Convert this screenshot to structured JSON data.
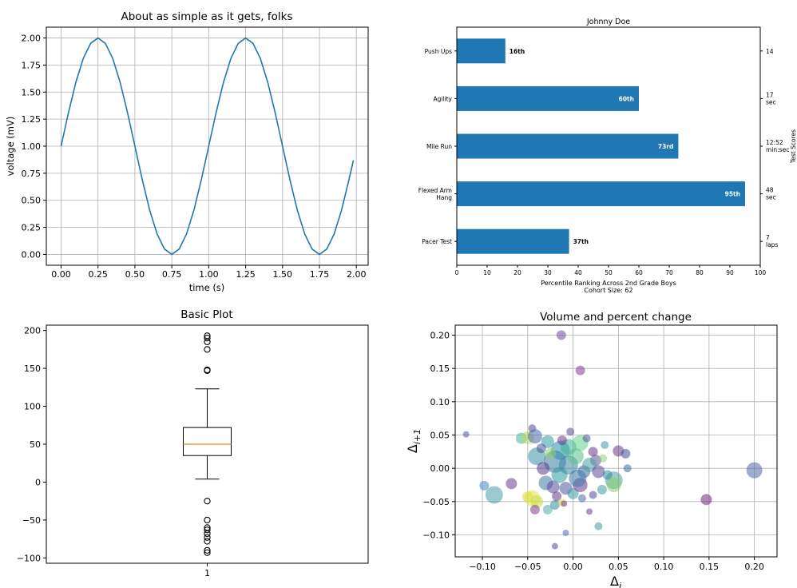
{
  "chart_data": [
    {
      "type": "line",
      "title": "About as simple as it gets, folks",
      "xlabel": "time (s)",
      "ylabel": "voltage (mV)",
      "xlim": [
        -0.1,
        2.08
      ],
      "ylim": [
        -0.1,
        2.1
      ],
      "xticks": [
        0.0,
        0.25,
        0.5,
        0.75,
        1.0,
        1.25,
        1.5,
        1.75,
        2.0
      ],
      "xtick_labels": [
        "0.00",
        "0.25",
        "0.50",
        "0.75",
        "1.00",
        "1.25",
        "1.50",
        "1.75",
        "2.00"
      ],
      "yticks": [
        0.0,
        0.25,
        0.5,
        0.75,
        1.0,
        1.25,
        1.5,
        1.75,
        2.0
      ],
      "ytick_labels": [
        "0.00",
        "0.25",
        "0.50",
        "0.75",
        "1.00",
        "1.25",
        "1.50",
        "1.75",
        "2.00"
      ],
      "grid": true,
      "color": "#1f77b4",
      "series": [
        {
          "x": [
            0.0,
            0.05,
            0.1,
            0.15,
            0.2,
            0.25,
            0.3,
            0.35,
            0.4,
            0.45,
            0.5,
            0.55,
            0.6,
            0.65,
            0.7,
            0.75,
            0.8,
            0.85,
            0.9,
            0.95,
            1.0,
            1.05,
            1.1,
            1.15,
            1.2,
            1.25,
            1.3,
            1.35,
            1.4,
            1.45,
            1.5,
            1.55,
            1.6,
            1.65,
            1.7,
            1.75,
            1.8,
            1.85,
            1.9,
            1.95,
            1.98
          ],
          "y": [
            1.0,
            1.31,
            1.59,
            1.81,
            1.95,
            2.0,
            1.95,
            1.81,
            1.59,
            1.31,
            1.0,
            0.69,
            0.41,
            0.19,
            0.05,
            0.0,
            0.05,
            0.19,
            0.41,
            0.69,
            1.0,
            1.31,
            1.59,
            1.81,
            1.95,
            2.0,
            1.95,
            1.81,
            1.59,
            1.31,
            1.0,
            0.69,
            0.41,
            0.19,
            0.05,
            0.0,
            0.05,
            0.19,
            0.41,
            0.69,
            0.87
          ]
        }
      ]
    },
    {
      "type": "bar",
      "orientation": "horizontal",
      "title": "Johnny Doe",
      "categories": [
        "Pacer Test",
        "Flexed Arm Hang",
        "Mile Run",
        "Agility",
        "Push Ups"
      ],
      "category_lines": [
        [
          "Pacer Test"
        ],
        [
          "Flexed Arm",
          "Hang"
        ],
        [
          "Mile Run"
        ],
        [
          "Agility"
        ],
        [
          "Push Ups"
        ]
      ],
      "values": [
        37,
        95,
        73,
        60,
        16
      ],
      "bar_labels": [
        "37th",
        "95th",
        "73rd",
        "60th",
        "16th"
      ],
      "label_inside": [
        false,
        true,
        true,
        true,
        false
      ],
      "right_labels": [
        [
          "7",
          "laps"
        ],
        [
          "48",
          "sec"
        ],
        [
          "12:52",
          "min:sec"
        ],
        [
          "17",
          "sec"
        ],
        [
          "14"
        ]
      ],
      "right_axis_label": "Test Scores",
      "xlabel_lines": [
        "Percentile Ranking Across 2nd Grade Boys",
        "Cohort Size: 62"
      ],
      "xlim": [
        0,
        100
      ],
      "xticks": [
        0,
        10,
        20,
        30,
        40,
        50,
        60,
        70,
        80,
        90,
        100
      ],
      "grid": false,
      "color": "#1f77b4"
    },
    {
      "type": "box",
      "title": "Basic Plot",
      "categories": [
        "1"
      ],
      "box": {
        "whisker_low": 4,
        "q1": 35,
        "median": 50,
        "q3": 72,
        "whisker_high": 123
      },
      "outliers": [
        193,
        190,
        185,
        175,
        148,
        147,
        -25,
        -50,
        -60,
        -63,
        -68,
        -73,
        -78,
        -90,
        -93
      ],
      "ylim": [
        -107,
        207
      ],
      "yticks": [
        -100,
        -50,
        0,
        50,
        100,
        150,
        200
      ],
      "grid": false,
      "median_color": "#ff7f0e"
    },
    {
      "type": "scatter",
      "title": "Volume and percent change",
      "xlabel": "Δ",
      "xlabel_sub": "i",
      "ylabel": "Δ",
      "ylabel_sub": "i+1",
      "xlim": [
        -0.13,
        0.225
      ],
      "ylim": [
        -0.133,
        0.215
      ],
      "xticks": [
        -0.1,
        -0.05,
        0.0,
        0.05,
        0.1,
        0.15,
        0.2
      ],
      "xtick_labels": [
        "−0.10",
        "−0.05",
        "0.00",
        "0.05",
        "0.10",
        "0.15",
        "0.20"
      ],
      "yticks": [
        -0.1,
        -0.05,
        0.0,
        0.05,
        0.1,
        0.15,
        0.2
      ],
      "ytick_labels": [
        "−0.10",
        "−0.05",
        "0.00",
        "0.05",
        "0.10",
        "0.15",
        "0.20"
      ],
      "grid": true,
      "points": [
        {
          "x": -0.013,
          "y": 0.2,
          "s": 6,
          "c": "#6b4c9a"
        },
        {
          "x": 0.008,
          "y": 0.147,
          "s": 6,
          "c": "#7a3f8a"
        },
        {
          "x": -0.118,
          "y": 0.051,
          "s": 4,
          "c": "#4a5a9a"
        },
        {
          "x": 0.2,
          "y": -0.003,
          "s": 10,
          "c": "#4e6aa3"
        },
        {
          "x": 0.147,
          "y": -0.047,
          "s": 7,
          "c": "#6a2a7a"
        },
        {
          "x": -0.098,
          "y": -0.026,
          "s": 6,
          "c": "#3f8cae"
        },
        {
          "x": -0.087,
          "y": -0.04,
          "s": 11,
          "c": "#45a0a8"
        },
        {
          "x": -0.068,
          "y": -0.023,
          "s": 7,
          "c": "#6a3a8a"
        },
        {
          "x": -0.057,
          "y": 0.045,
          "s": 7,
          "c": "#44b4a0"
        },
        {
          "x": -0.05,
          "y": 0.046,
          "s": 8,
          "c": "#b8dc58"
        },
        {
          "x": -0.045,
          "y": 0.06,
          "s": 5,
          "c": "#5a4a9a"
        },
        {
          "x": -0.042,
          "y": 0.048,
          "s": 9,
          "c": "#4a6aa8"
        },
        {
          "x": -0.04,
          "y": 0.018,
          "s": 11,
          "c": "#3a90a8"
        },
        {
          "x": -0.028,
          "y": 0.04,
          "s": 8,
          "c": "#2f9aa0"
        },
        {
          "x": -0.02,
          "y": 0.01,
          "s": 14,
          "c": "#3a7aa8"
        },
        {
          "x": -0.014,
          "y": 0.027,
          "s": 12,
          "c": "#2a8ca8"
        },
        {
          "x": -0.005,
          "y": 0.032,
          "s": 10,
          "c": "#3ab29a"
        },
        {
          "x": 0.008,
          "y": 0.038,
          "s": 10,
          "c": "#6ad08a"
        },
        {
          "x": 0.025,
          "y": 0.012,
          "s": 7,
          "c": "#5a5aa0"
        },
        {
          "x": 0.033,
          "y": 0.015,
          "s": 5,
          "c": "#8acf70"
        },
        {
          "x": 0.05,
          "y": 0.026,
          "s": 7,
          "c": "#6a3a8a"
        },
        {
          "x": 0.058,
          "y": 0.022,
          "s": 6,
          "c": "#4a4a9a"
        },
        {
          "x": 0.06,
          "y": 0.0,
          "s": 5,
          "c": "#3f6aa3"
        },
        {
          "x": 0.045,
          "y": -0.018,
          "s": 11,
          "c": "#4aa09a"
        },
        {
          "x": 0.045,
          "y": -0.025,
          "s": 9,
          "c": "#88d070"
        },
        {
          "x": 0.038,
          "y": -0.01,
          "s": 6,
          "c": "#3a8aa8"
        },
        {
          "x": 0.022,
          "y": -0.04,
          "s": 5,
          "c": "#5a4a9a"
        },
        {
          "x": 0.028,
          "y": -0.087,
          "s": 5,
          "c": "#3f9aa8"
        },
        {
          "x": 0.018,
          "y": -0.065,
          "s": 4,
          "c": "#6a3a8a"
        },
        {
          "x": -0.045,
          "y": -0.045,
          "s": 10,
          "c": "#e8e44a"
        },
        {
          "x": -0.05,
          "y": -0.043,
          "s": 7,
          "c": "#d8e040"
        },
        {
          "x": -0.04,
          "y": -0.05,
          "s": 8,
          "c": "#c8dc48"
        },
        {
          "x": -0.028,
          "y": -0.062,
          "s": 6,
          "c": "#4ab0a0"
        },
        {
          "x": -0.02,
          "y": -0.055,
          "s": 6,
          "c": "#3a8aa0"
        },
        {
          "x": -0.012,
          "y": -0.052,
          "s": 5,
          "c": "#e0e050"
        },
        {
          "x": -0.01,
          "y": -0.053,
          "s": 4,
          "c": "#6a3a8a"
        },
        {
          "x": -0.008,
          "y": -0.097,
          "s": 4,
          "c": "#4a6aa8"
        },
        {
          "x": -0.02,
          "y": -0.117,
          "s": 4,
          "c": "#5a4a9a"
        },
        {
          "x": -0.042,
          "y": -0.062,
          "s": 6,
          "c": "#7a3f8a"
        },
        {
          "x": -0.033,
          "y": 0.0,
          "s": 8,
          "c": "#5a3a8a"
        },
        {
          "x": -0.03,
          "y": -0.022,
          "s": 9,
          "c": "#3f7aa8"
        },
        {
          "x": -0.022,
          "y": -0.028,
          "s": 8,
          "c": "#5a4a9a"
        },
        {
          "x": -0.015,
          "y": -0.01,
          "s": 10,
          "c": "#2f9aa0"
        },
        {
          "x": -0.008,
          "y": -0.03,
          "s": 8,
          "c": "#4a5a9a"
        },
        {
          "x": 0.0,
          "y": -0.038,
          "s": 7,
          "c": "#3a9aa8"
        },
        {
          "x": 0.008,
          "y": -0.025,
          "s": 9,
          "c": "#6a3a8a"
        },
        {
          "x": 0.012,
          "y": -0.005,
          "s": 8,
          "c": "#3f6aa3"
        },
        {
          "x": 0.018,
          "y": 0.005,
          "s": 9,
          "c": "#4aa0a0"
        },
        {
          "x": -0.005,
          "y": 0.005,
          "s": 12,
          "c": "#3a8aa0"
        },
        {
          "x": 0.003,
          "y": 0.018,
          "s": 10,
          "c": "#58c090"
        },
        {
          "x": -0.012,
          "y": 0.042,
          "s": 6,
          "c": "#6a3a8a"
        },
        {
          "x": 0.015,
          "y": 0.045,
          "s": 5,
          "c": "#4a5a9a"
        },
        {
          "x": 0.028,
          "y": -0.005,
          "s": 8,
          "c": "#5a4a9a"
        },
        {
          "x": -0.025,
          "y": 0.022,
          "s": 7,
          "c": "#8ad070"
        },
        {
          "x": 0.005,
          "y": -0.015,
          "s": 11,
          "c": "#3a7aa8"
        },
        {
          "x": 0.022,
          "y": 0.025,
          "s": 6,
          "c": "#6a3a8a"
        },
        {
          "x": -0.035,
          "y": 0.03,
          "s": 6,
          "c": "#4a5a9a"
        },
        {
          "x": 0.035,
          "y": 0.035,
          "s": 5,
          "c": "#3a9aa8"
        },
        {
          "x": -0.003,
          "y": 0.055,
          "s": 5,
          "c": "#5a4a9a"
        },
        {
          "x": 0.01,
          "y": -0.045,
          "s": 5,
          "c": "#4a6aa8"
        },
        {
          "x": -0.018,
          "y": -0.042,
          "s": 6,
          "c": "#6a3a8a"
        },
        {
          "x": 0.032,
          "y": -0.032,
          "s": 6,
          "c": "#3f9aa8"
        }
      ]
    }
  ]
}
